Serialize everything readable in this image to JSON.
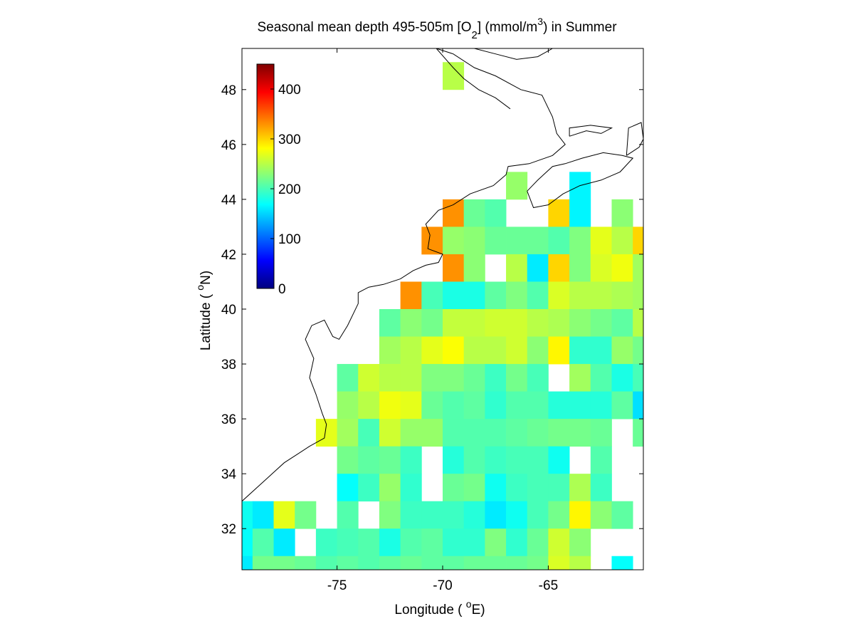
{
  "chart_data": {
    "type": "heatmap",
    "title": {
      "main": "Seasonal mean depth 495-505m [O",
      "sub": "2",
      "mid": "] (mmol/m",
      "sup": "3",
      "end": ") in  Summer"
    },
    "xlabel": {
      "text": "Longitude ( ",
      "sup": "o",
      "end": "E)"
    },
    "ylabel": {
      "text": "Latitude ( ",
      "sup": "o",
      "end": "N)"
    },
    "xlim": [
      -79.5,
      -60.5
    ],
    "ylim": [
      30.5,
      49.5
    ],
    "xticks": [
      -75,
      -70,
      -65
    ],
    "yticks": [
      32,
      34,
      36,
      38,
      40,
      42,
      44,
      46,
      48
    ],
    "colorbar": {
      "min": 0,
      "max": 450,
      "ticks": [
        0,
        100,
        200,
        300,
        400
      ],
      "colormap": "jet",
      "placement": "top-left"
    },
    "cell_size_deg": 1,
    "cells": [
      [
        -69.5,
        48.5,
        250
      ],
      [
        -66.5,
        44.5,
        235
      ],
      [
        -63.5,
        44.5,
        165
      ],
      [
        -69.5,
        43.5,
        330
      ],
      [
        -68.5,
        43.5,
        215
      ],
      [
        -67.5,
        43.5,
        205
      ],
      [
        -64.5,
        43.5,
        300
      ],
      [
        -63.5,
        43.5,
        165
      ],
      [
        -61.5,
        43.5,
        230
      ],
      [
        -70.5,
        42.5,
        330
      ],
      [
        -69.5,
        42.5,
        235
      ],
      [
        -68.5,
        42.5,
        230
      ],
      [
        -67.5,
        42.5,
        215
      ],
      [
        -66.5,
        42.5,
        215
      ],
      [
        -65.5,
        42.5,
        215
      ],
      [
        -64.5,
        42.5,
        205
      ],
      [
        -63.5,
        42.5,
        225
      ],
      [
        -62.5,
        42.5,
        270
      ],
      [
        -61.5,
        42.5,
        250
      ],
      [
        -60.5,
        42.5,
        300
      ],
      [
        -69.5,
        41.5,
        330
      ],
      [
        -68.5,
        41.5,
        230
      ],
      [
        -66.5,
        41.5,
        250
      ],
      [
        -65.5,
        41.5,
        160
      ],
      [
        -64.5,
        41.5,
        300
      ],
      [
        -63.5,
        41.5,
        225
      ],
      [
        -62.5,
        41.5,
        265
      ],
      [
        -61.5,
        41.5,
        275
      ],
      [
        -60.5,
        41.5,
        240
      ],
      [
        -71.5,
        40.5,
        330
      ],
      [
        -70.5,
        40.5,
        200
      ],
      [
        -69.5,
        40.5,
        180
      ],
      [
        -68.5,
        40.5,
        180
      ],
      [
        -67.5,
        40.5,
        210
      ],
      [
        -66.5,
        40.5,
        225
      ],
      [
        -65.5,
        40.5,
        205
      ],
      [
        -64.5,
        40.5,
        265
      ],
      [
        -63.5,
        40.5,
        250
      ],
      [
        -62.5,
        40.5,
        250
      ],
      [
        -61.5,
        40.5,
        245
      ],
      [
        -60.5,
        40.5,
        240
      ],
      [
        -72.5,
        39.5,
        210
      ],
      [
        -71.5,
        39.5,
        230
      ],
      [
        -70.5,
        39.5,
        220
      ],
      [
        -69.5,
        39.5,
        255
      ],
      [
        -68.5,
        39.5,
        255
      ],
      [
        -67.5,
        39.5,
        260
      ],
      [
        -66.5,
        39.5,
        260
      ],
      [
        -65.5,
        39.5,
        250
      ],
      [
        -64.5,
        39.5,
        245
      ],
      [
        -63.5,
        39.5,
        230
      ],
      [
        -62.5,
        39.5,
        220
      ],
      [
        -61.5,
        39.5,
        210
      ],
      [
        -60.5,
        39.5,
        250
      ],
      [
        -72.5,
        38.5,
        240
      ],
      [
        -71.5,
        38.5,
        250
      ],
      [
        -70.5,
        38.5,
        270
      ],
      [
        -69.5,
        38.5,
        280
      ],
      [
        -68.5,
        38.5,
        250
      ],
      [
        -67.5,
        38.5,
        250
      ],
      [
        -66.5,
        38.5,
        260
      ],
      [
        -65.5,
        38.5,
        230
      ],
      [
        -64.5,
        38.5,
        285
      ],
      [
        -63.5,
        38.5,
        190
      ],
      [
        -62.5,
        38.5,
        190
      ],
      [
        -61.5,
        38.5,
        235
      ],
      [
        -60.5,
        38.5,
        220
      ],
      [
        -74.5,
        37.5,
        210
      ],
      [
        -73.5,
        37.5,
        260
      ],
      [
        -72.5,
        37.5,
        250
      ],
      [
        -71.5,
        37.5,
        250
      ],
      [
        -70.5,
        37.5,
        225
      ],
      [
        -69.5,
        37.5,
        225
      ],
      [
        -68.5,
        37.5,
        215
      ],
      [
        -67.5,
        37.5,
        195
      ],
      [
        -66.5,
        37.5,
        220
      ],
      [
        -65.5,
        37.5,
        200
      ],
      [
        -63.5,
        37.5,
        240
      ],
      [
        -62.5,
        37.5,
        205
      ],
      [
        -61.5,
        37.5,
        180
      ],
      [
        -60.5,
        37.5,
        200
      ],
      [
        -74.5,
        36.5,
        235
      ],
      [
        -73.5,
        36.5,
        250
      ],
      [
        -72.5,
        36.5,
        275
      ],
      [
        -71.5,
        36.5,
        270
      ],
      [
        -70.5,
        36.5,
        215
      ],
      [
        -69.5,
        36.5,
        205
      ],
      [
        -68.5,
        36.5,
        210
      ],
      [
        -67.5,
        36.5,
        190
      ],
      [
        -66.5,
        36.5,
        205
      ],
      [
        -65.5,
        36.5,
        205
      ],
      [
        -64.5,
        36.5,
        185
      ],
      [
        -63.5,
        36.5,
        185
      ],
      [
        -62.5,
        36.5,
        185
      ],
      [
        -61.5,
        36.5,
        210
      ],
      [
        -60.5,
        36.5,
        155
      ],
      [
        -75.5,
        35.5,
        270
      ],
      [
        -74.5,
        35.5,
        240
      ],
      [
        -73.5,
        35.5,
        200
      ],
      [
        -72.5,
        35.5,
        260
      ],
      [
        -71.5,
        35.5,
        235
      ],
      [
        -70.5,
        35.5,
        235
      ],
      [
        -69.5,
        35.5,
        205
      ],
      [
        -68.5,
        35.5,
        205
      ],
      [
        -67.5,
        35.5,
        205
      ],
      [
        -66.5,
        35.5,
        210
      ],
      [
        -65.5,
        35.5,
        215
      ],
      [
        -64.5,
        35.5,
        220
      ],
      [
        -63.5,
        35.5,
        220
      ],
      [
        -62.5,
        35.5,
        215
      ],
      [
        -60.5,
        35.5,
        215
      ],
      [
        -74.5,
        34.5,
        220
      ],
      [
        -73.5,
        34.5,
        210
      ],
      [
        -72.5,
        34.5,
        215
      ],
      [
        -71.5,
        34.5,
        195
      ],
      [
        -69.5,
        34.5,
        185
      ],
      [
        -68.5,
        34.5,
        205
      ],
      [
        -67.5,
        34.5,
        195
      ],
      [
        -66.5,
        34.5,
        200
      ],
      [
        -65.5,
        34.5,
        200
      ],
      [
        -64.5,
        34.5,
        175
      ],
      [
        -62.5,
        34.5,
        205
      ],
      [
        -74.5,
        33.5,
        170
      ],
      [
        -73.5,
        33.5,
        195
      ],
      [
        -72.5,
        33.5,
        235
      ],
      [
        -71.5,
        33.5,
        190
      ],
      [
        -69.5,
        33.5,
        215
      ],
      [
        -68.5,
        33.5,
        220
      ],
      [
        -67.5,
        33.5,
        175
      ],
      [
        -66.5,
        33.5,
        195
      ],
      [
        -65.5,
        33.5,
        200
      ],
      [
        -64.5,
        33.5,
        200
      ],
      [
        -63.5,
        33.5,
        245
      ],
      [
        -62.5,
        33.5,
        195
      ],
      [
        -79.5,
        32.5,
        175
      ],
      [
        -78.5,
        32.5,
        160
      ],
      [
        -77.5,
        32.5,
        270
      ],
      [
        -76.5,
        32.5,
        220
      ],
      [
        -74.5,
        32.5,
        205
      ],
      [
        -72.5,
        32.5,
        225
      ],
      [
        -71.5,
        32.5,
        195
      ],
      [
        -70.5,
        32.5,
        195
      ],
      [
        -69.5,
        32.5,
        195
      ],
      [
        -68.5,
        32.5,
        185
      ],
      [
        -67.5,
        32.5,
        160
      ],
      [
        -66.5,
        32.5,
        175
      ],
      [
        -65.5,
        32.5,
        200
      ],
      [
        -64.5,
        32.5,
        220
      ],
      [
        -63.5,
        32.5,
        285
      ],
      [
        -62.5,
        32.5,
        230
      ],
      [
        -61.5,
        32.5,
        210
      ],
      [
        -79.5,
        31.5,
        170
      ],
      [
        -78.5,
        31.5,
        205
      ],
      [
        -77.5,
        31.5,
        160
      ],
      [
        -75.5,
        31.5,
        195
      ],
      [
        -74.5,
        31.5,
        200
      ],
      [
        -73.5,
        31.5,
        205
      ],
      [
        -72.5,
        31.5,
        180
      ],
      [
        -71.5,
        31.5,
        205
      ],
      [
        -70.5,
        31.5,
        210
      ],
      [
        -69.5,
        31.5,
        190
      ],
      [
        -68.5,
        31.5,
        190
      ],
      [
        -67.5,
        31.5,
        225
      ],
      [
        -66.5,
        31.5,
        190
      ],
      [
        -65.5,
        31.5,
        215
      ],
      [
        -64.5,
        31.5,
        260
      ],
      [
        -63.5,
        31.5,
        230
      ],
      [
        -79.5,
        30.5,
        160
      ],
      [
        -78.5,
        30.5,
        220
      ],
      [
        -77.5,
        30.5,
        220
      ],
      [
        -76.5,
        30.5,
        215
      ],
      [
        -75.5,
        30.5,
        205
      ],
      [
        -74.5,
        30.5,
        210
      ],
      [
        -73.5,
        30.5,
        205
      ],
      [
        -72.5,
        30.5,
        210
      ],
      [
        -71.5,
        30.5,
        215
      ],
      [
        -70.5,
        30.5,
        210
      ],
      [
        -69.5,
        30.5,
        210
      ],
      [
        -68.5,
        30.5,
        215
      ],
      [
        -67.5,
        30.5,
        215
      ],
      [
        -66.5,
        30.5,
        215
      ],
      [
        -65.5,
        30.5,
        220
      ],
      [
        -64.5,
        30.5,
        265
      ],
      [
        -63.5,
        30.5,
        250
      ],
      [
        -61.5,
        30.5,
        170
      ]
    ],
    "coastlines": [
      [
        [
          -79.5,
          33.0
        ],
        [
          -78.5,
          33.7
        ],
        [
          -77.5,
          34.4
        ],
        [
          -76.9,
          34.7
        ],
        [
          -76.3,
          35.0
        ],
        [
          -75.6,
          35.3
        ],
        [
          -75.5,
          35.8
        ],
        [
          -75.7,
          36.2
        ],
        [
          -76.0,
          36.9
        ],
        [
          -76.3,
          37.5
        ],
        [
          -76.1,
          38.2
        ],
        [
          -76.5,
          38.9
        ],
        [
          -76.2,
          39.4
        ],
        [
          -75.6,
          39.6
        ],
        [
          -75.2,
          39.0
        ],
        [
          -74.9,
          38.9
        ],
        [
          -74.5,
          39.4
        ],
        [
          -74.0,
          40.2
        ],
        [
          -74.0,
          40.6
        ],
        [
          -73.5,
          40.8
        ],
        [
          -72.8,
          40.9
        ],
        [
          -72.0,
          41.1
        ],
        [
          -71.4,
          41.4
        ],
        [
          -70.8,
          41.6
        ],
        [
          -70.2,
          41.7
        ],
        [
          -70.0,
          42.0
        ],
        [
          -70.7,
          42.2
        ],
        [
          -70.6,
          42.7
        ],
        [
          -70.8,
          43.1
        ],
        [
          -70.2,
          43.6
        ],
        [
          -69.5,
          43.8
        ],
        [
          -68.7,
          44.2
        ],
        [
          -67.6,
          44.5
        ],
        [
          -67.0,
          44.9
        ],
        [
          -66.9,
          45.2
        ],
        [
          -65.9,
          45.3
        ],
        [
          -64.8,
          45.6
        ],
        [
          -64.2,
          46.0
        ],
        [
          -64.6,
          46.4
        ],
        [
          -64.8,
          47.0
        ],
        [
          -65.3,
          47.8
        ],
        [
          -66.3,
          48.0
        ],
        [
          -67.5,
          48.5
        ],
        [
          -68.5,
          48.8
        ],
        [
          -69.5,
          49.3
        ],
        [
          -70.3,
          49.5
        ]
      ],
      [
        [
          -66.0,
          44.3
        ],
        [
          -65.5,
          44.7
        ],
        [
          -64.8,
          45.2
        ],
        [
          -64.2,
          45.3
        ],
        [
          -63.4,
          45.5
        ],
        [
          -62.4,
          45.7
        ],
        [
          -61.5,
          45.6
        ],
        [
          -61.0,
          45.5
        ],
        [
          -61.6,
          45.0
        ],
        [
          -62.5,
          44.7
        ],
        [
          -63.5,
          44.5
        ],
        [
          -64.3,
          44.2
        ],
        [
          -65.0,
          43.8
        ],
        [
          -65.7,
          43.7
        ],
        [
          -66.0,
          44.3
        ]
      ],
      [
        [
          -64.0,
          46.3
        ],
        [
          -63.2,
          46.5
        ],
        [
          -62.5,
          46.4
        ],
        [
          -62.0,
          46.6
        ],
        [
          -63.0,
          46.7
        ],
        [
          -64.0,
          46.6
        ],
        [
          -64.0,
          46.3
        ]
      ],
      [
        [
          -61.3,
          45.6
        ],
        [
          -60.7,
          45.9
        ],
        [
          -60.5,
          46.2
        ],
        [
          -60.6,
          46.8
        ],
        [
          -61.2,
          46.6
        ],
        [
          -61.3,
          45.6
        ]
      ],
      [
        [
          -70.3,
          49.5
        ],
        [
          -69.5,
          48.8
        ],
        [
          -69.0,
          48.4
        ],
        [
          -68.3,
          48.0
        ],
        [
          -67.5,
          47.7
        ],
        [
          -66.8,
          47.3
        ]
      ],
      [
        [
          -64.8,
          49.5
        ],
        [
          -65.5,
          49.2
        ],
        [
          -66.5,
          49.1
        ],
        [
          -67.5,
          49.3
        ],
        [
          -68.5,
          49.5
        ]
      ]
    ]
  }
}
